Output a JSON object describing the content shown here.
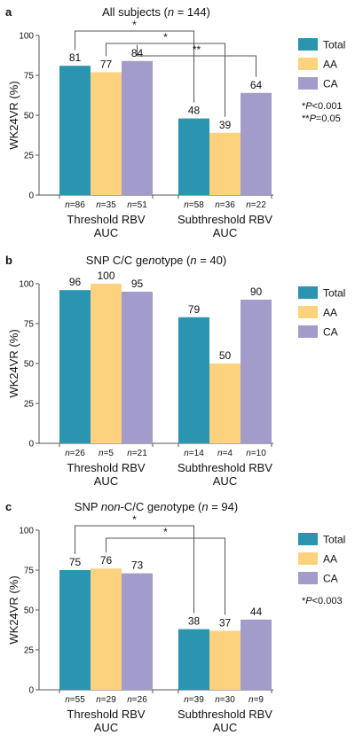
{
  "colors": {
    "Total": "#2b94b0",
    "AA": "#fdd27e",
    "CA": "#a29ccb"
  },
  "chart_data": [
    {
      "panel": "a",
      "type": "bar",
      "title": "All subjects (n = 144)",
      "ylabel": "WK24VR (%)",
      "ylim": [
        0,
        100
      ],
      "yticks": [
        "0",
        "25",
        "50",
        "75",
        "100"
      ],
      "categories": [
        "Threshold RBV AUC",
        "Subthreshold RBV AUC"
      ],
      "series": [
        {
          "name": "Total",
          "values": [
            81,
            48
          ],
          "labels": [
            "81",
            "48"
          ],
          "n": [
            "n=86",
            "n=58"
          ]
        },
        {
          "name": "AA",
          "values": [
            77,
            39
          ],
          "labels": [
            "77",
            "39"
          ],
          "n": [
            "n=35",
            "n=36"
          ]
        },
        {
          "name": "CA",
          "values": [
            84,
            64
          ],
          "labels": [
            "84",
            "64"
          ],
          "n": [
            "n=51",
            "n=22"
          ]
        }
      ],
      "legend": [
        "Total",
        "AA",
        "CA"
      ],
      "legend_position": "right",
      "comparisons": [
        {
          "series": "Total",
          "star": "*"
        },
        {
          "series": "AA",
          "star": "*"
        },
        {
          "series": "CA",
          "star": "**"
        }
      ],
      "notes": [
        "*P<0.001",
        "**P=0.05"
      ]
    },
    {
      "panel": "b",
      "type": "bar",
      "title": "SNP C/C genotype (n = 40)",
      "ylabel": "WK24VR (%)",
      "ylim": [
        0,
        100
      ],
      "yticks": [
        "0",
        "25",
        "50",
        "75",
        "100"
      ],
      "categories": [
        "Threshold RBV AUC",
        "Subthreshold RBV AUC"
      ],
      "series": [
        {
          "name": "Total",
          "values": [
            96,
            79
          ],
          "labels": [
            "96",
            "79"
          ],
          "n": [
            "n=26",
            "n=14"
          ]
        },
        {
          "name": "AA",
          "values": [
            100,
            50
          ],
          "labels": [
            "100",
            "50"
          ],
          "n": [
            "n=5",
            "n=4"
          ]
        },
        {
          "name": "CA",
          "values": [
            95,
            90
          ],
          "labels": [
            "95",
            "90"
          ],
          "n": [
            "n=21",
            "n=10"
          ]
        }
      ],
      "legend": [
        "Total",
        "AA",
        "CA"
      ],
      "legend_position": "right",
      "comparisons": [],
      "notes": []
    },
    {
      "panel": "c",
      "type": "bar",
      "title": "SNP non-C/C genotype (n = 94)",
      "ylabel": "WK24VR (%)",
      "ylim": [
        0,
        100
      ],
      "yticks": [
        "0",
        "25",
        "50",
        "75",
        "100"
      ],
      "categories": [
        "Threshold RBV AUC",
        "Subthreshold RBV AUC"
      ],
      "series": [
        {
          "name": "Total",
          "values": [
            75,
            38
          ],
          "labels": [
            "75",
            "38"
          ],
          "n": [
            "n=55",
            "n=39"
          ]
        },
        {
          "name": "AA",
          "values": [
            76,
            37
          ],
          "labels": [
            "76",
            "37"
          ],
          "n": [
            "n=29",
            "n=30"
          ]
        },
        {
          "name": "CA",
          "values": [
            73,
            44
          ],
          "labels": [
            "73",
            "44"
          ],
          "n": [
            "n=26",
            "n=9"
          ]
        }
      ],
      "legend": [
        "Total",
        "AA",
        "CA"
      ],
      "legend_position": "right",
      "comparisons": [
        {
          "series": "Total",
          "star": "*"
        },
        {
          "series": "AA",
          "star": "*"
        }
      ],
      "notes": [
        "*P<0.003"
      ]
    }
  ]
}
